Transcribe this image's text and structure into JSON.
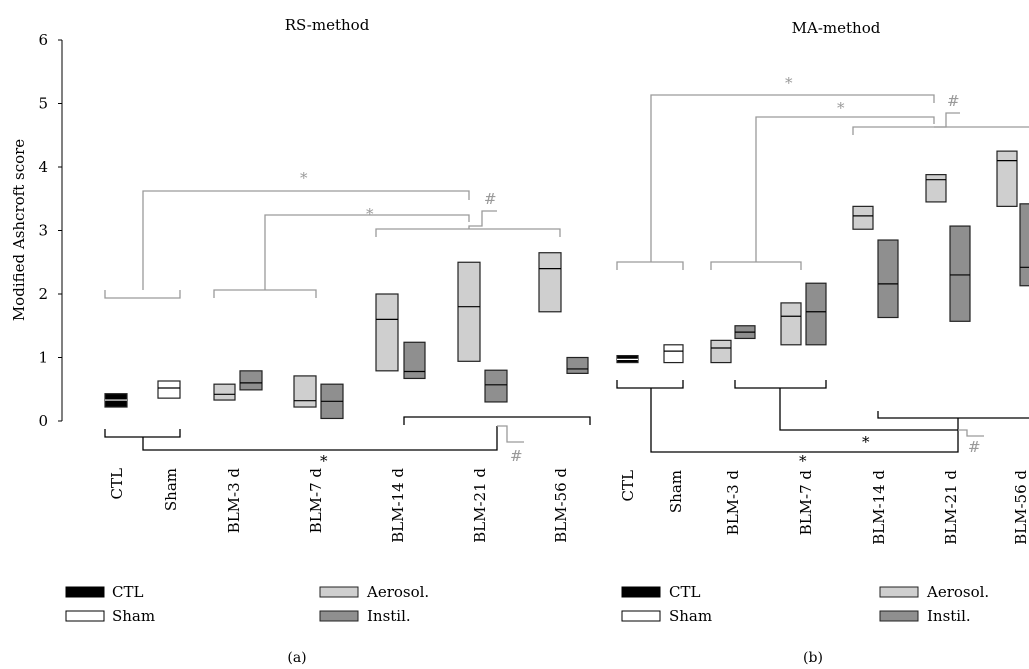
{
  "colors": {
    "ctl": "#000000",
    "sham": "#ffffff",
    "aerosol": "#cfcfcf",
    "instil": "#8f8f8f",
    "edge": "#222222",
    "bracket_black": "#000000",
    "bracket_gray": "#9a9a9a"
  },
  "chart_data": [
    {
      "type": "box",
      "panel": "(a)",
      "title": "RS-method",
      "ylabel": "Modified Ashcroft score",
      "ylim": [
        0,
        6
      ],
      "yticks": [
        "0",
        "1",
        "2",
        "3",
        "4",
        "5",
        "6"
      ],
      "categories": [
        "CTL",
        "Sham",
        "BLM-3 d",
        "BLM-7 d",
        "BLM-14 d",
        "BLM-21 d",
        "BLM-56 d"
      ],
      "boxes": [
        {
          "group": "CTL",
          "kind": "ctl",
          "low": 0.22,
          "median": 0.33,
          "high": 0.43
        },
        {
          "group": "Sham",
          "kind": "sham",
          "low": 0.36,
          "median": 0.52,
          "high": 0.63
        },
        {
          "group": "BLM-3 d",
          "kind": "aerosol",
          "low": 0.33,
          "median": 0.42,
          "high": 0.58
        },
        {
          "group": "BLM-3 d",
          "kind": "instil",
          "low": 0.49,
          "median": 0.6,
          "high": 0.79
        },
        {
          "group": "BLM-7 d",
          "kind": "aerosol",
          "low": 0.22,
          "median": 0.32,
          "high": 0.71
        },
        {
          "group": "BLM-7 d",
          "kind": "instil",
          "low": 0.04,
          "median": 0.31,
          "high": 0.58
        },
        {
          "group": "BLM-14 d",
          "kind": "aerosol",
          "low": 0.79,
          "median": 1.6,
          "high": 2.0
        },
        {
          "group": "BLM-14 d",
          "kind": "instil",
          "low": 0.67,
          "median": 0.78,
          "high": 1.24
        },
        {
          "group": "BLM-21 d",
          "kind": "aerosol",
          "low": 0.94,
          "median": 1.8,
          "high": 2.5
        },
        {
          "group": "BLM-21 d",
          "kind": "instil",
          "low": 0.3,
          "median": 0.57,
          "high": 0.8
        },
        {
          "group": "BLM-56 d",
          "kind": "aerosol",
          "low": 1.72,
          "median": 2.4,
          "high": 2.65
        },
        {
          "group": "BLM-56 d",
          "kind": "instil",
          "low": 0.75,
          "median": 0.82,
          "high": 1.0
        }
      ],
      "significance": [
        "*",
        "*",
        "#",
        "*",
        "#"
      ]
    },
    {
      "type": "box",
      "panel": "(b)",
      "title": "MA-method",
      "ylim": [
        0,
        6
      ],
      "categories": [
        "CTL",
        "Sham",
        "BLM-3 d",
        "BLM-7 d",
        "BLM-14 d",
        "BLM-21 d",
        "BLM-56 d"
      ],
      "boxes": [
        {
          "group": "CTL",
          "kind": "ctl",
          "low": 0.92,
          "median": 0.97,
          "high": 1.03
        },
        {
          "group": "Sham",
          "kind": "sham",
          "low": 0.92,
          "median": 1.1,
          "high": 1.2
        },
        {
          "group": "BLM-3 d",
          "kind": "aerosol",
          "low": 0.92,
          "median": 1.15,
          "high": 1.27
        },
        {
          "group": "BLM-3 d",
          "kind": "instil",
          "low": 1.3,
          "median": 1.4,
          "high": 1.5
        },
        {
          "group": "BLM-7 d",
          "kind": "aerosol",
          "low": 1.2,
          "median": 1.65,
          "high": 1.86
        },
        {
          "group": "BLM-7 d",
          "kind": "instil",
          "low": 1.2,
          "median": 1.72,
          "high": 2.17
        },
        {
          "group": "BLM-14 d",
          "kind": "aerosol",
          "low": 3.02,
          "median": 3.23,
          "high": 3.38
        },
        {
          "group": "BLM-14 d",
          "kind": "instil",
          "low": 1.63,
          "median": 2.16,
          "high": 2.85
        },
        {
          "group": "BLM-21 d",
          "kind": "aerosol",
          "low": 3.45,
          "median": 3.8,
          "high": 3.88
        },
        {
          "group": "BLM-21 d",
          "kind": "instil",
          "low": 1.57,
          "median": 2.3,
          "high": 3.07
        },
        {
          "group": "BLM-56 d",
          "kind": "aerosol",
          "low": 3.38,
          "median": 4.1,
          "high": 4.25
        },
        {
          "group": "BLM-56 d",
          "kind": "instil",
          "low": 2.13,
          "median": 2.42,
          "high": 3.42
        }
      ],
      "significance": [
        "*",
        "*",
        "#",
        "*",
        "#"
      ]
    }
  ],
  "legend": {
    "ctl": "CTL",
    "sham": "Sham",
    "aerosol": "Aerosol.",
    "instil": "Instil."
  },
  "panel_labels": [
    "(a)",
    "(b)"
  ]
}
